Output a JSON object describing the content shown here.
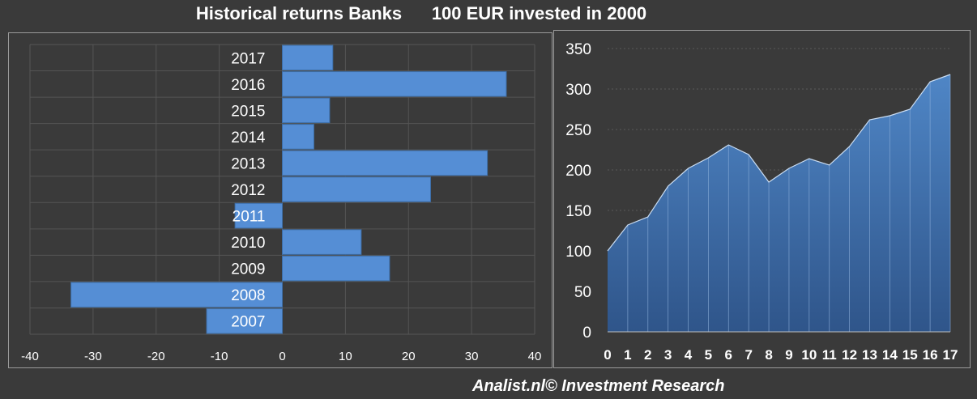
{
  "title": "Historical returns Banks      100 EUR invested in 2000",
  "footer": "Analist.nl© Investment Research",
  "colors": {
    "background": "#3a3a3a",
    "bar": "#558ed5",
    "area": "#4a78b0",
    "grid": "#555555",
    "text": "#ffffff"
  },
  "chart_data": [
    {
      "type": "bar",
      "orientation": "horizontal",
      "categories": [
        "2017",
        "2016",
        "2015",
        "2014",
        "2013",
        "2012",
        "2011",
        "2010",
        "2009",
        "2008",
        "2007"
      ],
      "values": [
        8,
        35.5,
        7.5,
        5,
        32.5,
        23.5,
        -7.5,
        12.5,
        17,
        -33.5,
        -12
      ],
      "xlim": [
        -40,
        40
      ],
      "xticks": [
        -40,
        -30,
        -20,
        -10,
        0,
        10,
        20,
        30,
        40
      ],
      "grid": true
    },
    {
      "type": "area",
      "x": [
        0,
        1,
        2,
        3,
        4,
        5,
        6,
        7,
        8,
        9,
        10,
        11,
        12,
        13,
        14,
        15,
        16,
        17
      ],
      "values": [
        100,
        132,
        142,
        180,
        202,
        215,
        231,
        219,
        185,
        202,
        214,
        206,
        229,
        262,
        267,
        275,
        309,
        318
      ],
      "ylim": [
        0,
        350
      ],
      "yticks": [
        0,
        50,
        100,
        150,
        200,
        250,
        300,
        350
      ],
      "grid": true
    }
  ]
}
